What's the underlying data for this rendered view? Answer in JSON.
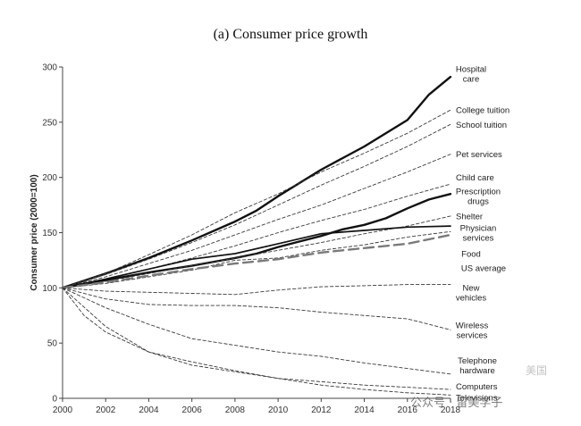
{
  "chart_data": {
    "type": "line",
    "title": "(a) Consumer price growth",
    "ylabel": "Consumer price (2000=100)",
    "xlabel": "",
    "xlim": [
      2000,
      2018
    ],
    "ylim": [
      0,
      300
    ],
    "x_ticks": [
      "2000",
      "2002",
      "2004",
      "2006",
      "2008",
      "2010",
      "2012",
      "2014",
      "2016",
      "2018"
    ],
    "y_ticks": [
      "0",
      "50",
      "100",
      "150",
      "200",
      "250",
      "300"
    ],
    "grid": false,
    "legend": "none",
    "series": [
      {
        "name": "Hospital care",
        "style": "solid",
        "weight": "bold",
        "points": [
          [
            2000,
            100
          ],
          [
            2002,
            113
          ],
          [
            2004,
            127
          ],
          [
            2006,
            143
          ],
          [
            2008,
            160
          ],
          [
            2009,
            170
          ],
          [
            2010,
            183
          ],
          [
            2012,
            207
          ],
          [
            2014,
            228
          ],
          [
            2016,
            252
          ],
          [
            2017,
            275
          ],
          [
            2018,
            291
          ]
        ]
      },
      {
        "name": "College tuition",
        "style": "dashed",
        "points": [
          [
            2000,
            100
          ],
          [
            2002,
            113
          ],
          [
            2004,
            130
          ],
          [
            2006,
            148
          ],
          [
            2008,
            168
          ],
          [
            2010,
            185
          ],
          [
            2012,
            205
          ],
          [
            2014,
            222
          ],
          [
            2016,
            240
          ],
          [
            2018,
            261
          ]
        ]
      },
      {
        "name": "School tuition",
        "style": "dashed",
        "points": [
          [
            2000,
            100
          ],
          [
            2002,
            112
          ],
          [
            2004,
            126
          ],
          [
            2006,
            141
          ],
          [
            2008,
            157
          ],
          [
            2010,
            175
          ],
          [
            2012,
            193
          ],
          [
            2014,
            210
          ],
          [
            2016,
            228
          ],
          [
            2018,
            248
          ]
        ]
      },
      {
        "name": "Pet services",
        "style": "dashed",
        "points": [
          [
            2000,
            100
          ],
          [
            2002,
            110
          ],
          [
            2004,
            122
          ],
          [
            2006,
            134
          ],
          [
            2008,
            148
          ],
          [
            2010,
            162
          ],
          [
            2012,
            175
          ],
          [
            2014,
            190
          ],
          [
            2016,
            205
          ],
          [
            2018,
            221
          ]
        ]
      },
      {
        "name": "Child care",
        "style": "dashed",
        "points": [
          [
            2000,
            100
          ],
          [
            2002,
            108
          ],
          [
            2004,
            117
          ],
          [
            2006,
            127
          ],
          [
            2008,
            138
          ],
          [
            2010,
            150
          ],
          [
            2012,
            161
          ],
          [
            2014,
            171
          ],
          [
            2016,
            183
          ],
          [
            2018,
            194
          ]
        ]
      },
      {
        "name": "Prescription drugs",
        "style": "solid",
        "weight": "bold",
        "points": [
          [
            2000,
            100
          ],
          [
            2002,
            107
          ],
          [
            2004,
            114
          ],
          [
            2006,
            120
          ],
          [
            2008,
            127
          ],
          [
            2009,
            131
          ],
          [
            2010,
            137
          ],
          [
            2011,
            142
          ],
          [
            2012,
            147
          ],
          [
            2013,
            153
          ],
          [
            2014,
            157
          ],
          [
            2015,
            163
          ],
          [
            2016,
            172
          ],
          [
            2017,
            180
          ],
          [
            2018,
            185
          ]
        ]
      },
      {
        "name": "Shelter",
        "style": "dashed",
        "points": [
          [
            2000,
            100
          ],
          [
            2002,
            106
          ],
          [
            2004,
            113
          ],
          [
            2006,
            120
          ],
          [
            2008,
            127
          ],
          [
            2010,
            134
          ],
          [
            2012,
            141
          ],
          [
            2014,
            149
          ],
          [
            2016,
            156
          ],
          [
            2018,
            165
          ]
        ]
      },
      {
        "name": "Physician services",
        "style": "solid",
        "weight": "medium",
        "points": [
          [
            2000,
            100
          ],
          [
            2002,
            108
          ],
          [
            2004,
            117
          ],
          [
            2006,
            126
          ],
          [
            2008,
            131
          ],
          [
            2010,
            140
          ],
          [
            2012,
            149
          ],
          [
            2014,
            152
          ],
          [
            2016,
            155
          ],
          [
            2018,
            156
          ]
        ]
      },
      {
        "name": "Food",
        "style": "dashed",
        "points": [
          [
            2000,
            100
          ],
          [
            2002,
            104
          ],
          [
            2004,
            110
          ],
          [
            2006,
            116
          ],
          [
            2008,
            125
          ],
          [
            2010,
            127
          ],
          [
            2012,
            134
          ],
          [
            2014,
            139
          ],
          [
            2016,
            146
          ],
          [
            2018,
            151
          ]
        ]
      },
      {
        "name": "US average",
        "style": "longdash",
        "weight": "bold",
        "points": [
          [
            2000,
            100
          ],
          [
            2002,
            105
          ],
          [
            2004,
            111
          ],
          [
            2006,
            117
          ],
          [
            2008,
            122
          ],
          [
            2009,
            124
          ],
          [
            2010,
            126
          ],
          [
            2012,
            132
          ],
          [
            2014,
            136
          ],
          [
            2016,
            140
          ],
          [
            2018,
            148
          ]
        ]
      },
      {
        "name": "New vehicles",
        "style": "dashed",
        "points": [
          [
            2000,
            100
          ],
          [
            2002,
            97
          ],
          [
            2004,
            96
          ],
          [
            2006,
            95
          ],
          [
            2008,
            94
          ],
          [
            2010,
            98
          ],
          [
            2012,
            101
          ],
          [
            2014,
            102
          ],
          [
            2016,
            103
          ],
          [
            2018,
            103
          ]
        ]
      },
      {
        "name": "Wireless services",
        "style": "dashed",
        "points": [
          [
            2000,
            100
          ],
          [
            2002,
            90
          ],
          [
            2004,
            85
          ],
          [
            2006,
            84
          ],
          [
            2008,
            84
          ],
          [
            2010,
            82
          ],
          [
            2012,
            78
          ],
          [
            2014,
            75
          ],
          [
            2016,
            72
          ],
          [
            2018,
            62
          ]
        ]
      },
      {
        "name": "Telephone hardware",
        "style": "dashed",
        "points": [
          [
            2000,
            100
          ],
          [
            2002,
            82
          ],
          [
            2004,
            67
          ],
          [
            2006,
            54
          ],
          [
            2008,
            48
          ],
          [
            2010,
            42
          ],
          [
            2012,
            38
          ],
          [
            2014,
            32
          ],
          [
            2016,
            27
          ],
          [
            2018,
            22
          ]
        ]
      },
      {
        "name": "Computers",
        "style": "dashed",
        "points": [
          [
            2000,
            100
          ],
          [
            2002,
            65
          ],
          [
            2004,
            42
          ],
          [
            2006,
            30
          ],
          [
            2008,
            24
          ],
          [
            2010,
            18
          ],
          [
            2012,
            15
          ],
          [
            2014,
            12
          ],
          [
            2016,
            10
          ],
          [
            2018,
            8
          ]
        ]
      },
      {
        "name": "Televisions",
        "style": "dashed",
        "points": [
          [
            2000,
            100
          ],
          [
            2001,
            75
          ],
          [
            2002,
            60
          ],
          [
            2004,
            42
          ],
          [
            2006,
            33
          ],
          [
            2008,
            25
          ],
          [
            2010,
            18
          ],
          [
            2012,
            12
          ],
          [
            2014,
            8
          ],
          [
            2016,
            5
          ],
          [
            2018,
            3
          ]
        ]
      }
    ],
    "labels": [
      {
        "text": [
          "Hospital",
          "care"
        ],
        "series": "Hospital care"
      },
      {
        "text": [
          "College tuition"
        ],
        "series": "College tuition"
      },
      {
        "text": [
          "School tuition"
        ],
        "series": "School tuition"
      },
      {
        "text": [
          "Pet services"
        ],
        "series": "Pet services"
      },
      {
        "text": [
          "Child care"
        ],
        "series": "Child care"
      },
      {
        "text": [
          "Prescription",
          "drugs"
        ],
        "series": "Prescription drugs"
      },
      {
        "text": [
          "Shelter"
        ],
        "series": "Shelter"
      },
      {
        "text": [
          "Physician",
          "services"
        ],
        "series": "Physician services"
      },
      {
        "text": [
          "Food"
        ],
        "series": "Food"
      },
      {
        "text": [
          "US average"
        ],
        "series": "US average"
      },
      {
        "text": [
          "New",
          "vehicles"
        ],
        "series": "New vehicles"
      },
      {
        "text": [
          "Wireless",
          "services"
        ],
        "series": "Wireless services"
      },
      {
        "text": [
          "Telephone",
          "hardware"
        ],
        "series": "Telephone hardware"
      },
      {
        "text": [
          "Computers"
        ],
        "series": "Computers"
      },
      {
        "text": [
          "Televisions"
        ],
        "series": "Televisions"
      }
    ]
  },
  "watermark": {
    "text": "公众号 · 留美学子",
    "mark": "美国"
  }
}
